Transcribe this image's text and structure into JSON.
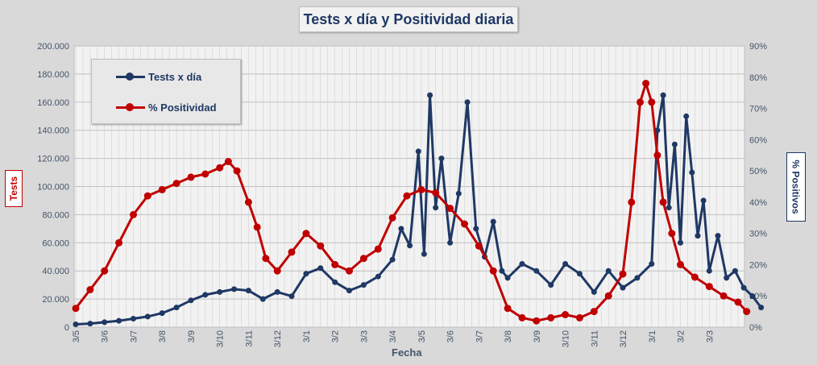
{
  "colors": {
    "tests": "#1f3864",
    "positividad": "#c00000",
    "axis_text": "#44546a"
  },
  "chart_data": {
    "type": "line",
    "title": "Tests x día y Positividad diaria",
    "xlabel": "Fecha",
    "ylabel_left": "Tests",
    "ylabel_right": "% Positivos",
    "legend": [
      "Tests x día",
      "% Positividad"
    ],
    "legend_position": "top-left",
    "grid": true,
    "y_left": {
      "min": 0,
      "max": 200000,
      "ticks": [
        "0",
        "20.000",
        "40.000",
        "60.000",
        "80.000",
        "100.000",
        "120.000",
        "140.000",
        "160.000",
        "180.000",
        "200.000"
      ]
    },
    "y_right": {
      "min": 0,
      "max": 90,
      "ticks": [
        "0%",
        "10%",
        "20%",
        "30%",
        "40%",
        "50%",
        "60%",
        "70%",
        "80%",
        "90%"
      ]
    },
    "x_tick_labels": [
      "3/5",
      "3/6",
      "3/7",
      "3/8",
      "3/9",
      "3/10",
      "3/11",
      "3/12",
      "3/1",
      "3/2",
      "3/3",
      "3/4",
      "3/5",
      "3/6",
      "3/7",
      "3/8",
      "3/9",
      "3/10",
      "3/11",
      "3/12",
      "3/1",
      "3/2",
      "3/3"
    ],
    "series": [
      {
        "name": "Tests x día",
        "axis": "left",
        "points": [
          [
            0,
            2000
          ],
          [
            0.5,
            2500
          ],
          [
            1,
            3500
          ],
          [
            1.5,
            4500
          ],
          [
            2,
            6000
          ],
          [
            2.5,
            7500
          ],
          [
            3,
            10000
          ],
          [
            3.5,
            14000
          ],
          [
            4,
            19000
          ],
          [
            4.5,
            23000
          ],
          [
            5,
            25000
          ],
          [
            5.5,
            27000
          ],
          [
            6,
            26000
          ],
          [
            6.5,
            20000
          ],
          [
            7,
            25000
          ],
          [
            7.5,
            22000
          ],
          [
            8,
            38000
          ],
          [
            8.5,
            42000
          ],
          [
            9,
            32000
          ],
          [
            9.5,
            26000
          ],
          [
            10,
            30000
          ],
          [
            10.5,
            36000
          ],
          [
            11,
            48000
          ],
          [
            11.3,
            70000
          ],
          [
            11.6,
            58000
          ],
          [
            11.9,
            125000
          ],
          [
            12.1,
            52000
          ],
          [
            12.3,
            165000
          ],
          [
            12.5,
            85000
          ],
          [
            12.7,
            120000
          ],
          [
            13,
            60000
          ],
          [
            13.3,
            95000
          ],
          [
            13.6,
            160000
          ],
          [
            13.9,
            70000
          ],
          [
            14.2,
            50000
          ],
          [
            14.5,
            75000
          ],
          [
            14.8,
            40000
          ],
          [
            15,
            35000
          ],
          [
            15.5,
            45000
          ],
          [
            16,
            40000
          ],
          [
            16.5,
            30000
          ],
          [
            17,
            45000
          ],
          [
            17.5,
            38000
          ],
          [
            18,
            25000
          ],
          [
            18.5,
            40000
          ],
          [
            19,
            28000
          ],
          [
            19.5,
            35000
          ],
          [
            20,
            45000
          ],
          [
            20.2,
            140000
          ],
          [
            20.4,
            165000
          ],
          [
            20.6,
            85000
          ],
          [
            20.8,
            130000
          ],
          [
            21,
            60000
          ],
          [
            21.2,
            150000
          ],
          [
            21.4,
            110000
          ],
          [
            21.6,
            65000
          ],
          [
            21.8,
            90000
          ],
          [
            22,
            40000
          ],
          [
            22.3,
            65000
          ],
          [
            22.6,
            35000
          ],
          [
            22.9,
            40000
          ],
          [
            23.2,
            28000
          ],
          [
            23.5,
            22000
          ],
          [
            23.8,
            14000
          ]
        ]
      },
      {
        "name": "% Positividad",
        "axis": "right",
        "points": [
          [
            0,
            6
          ],
          [
            0.5,
            12
          ],
          [
            1,
            18
          ],
          [
            1.5,
            27
          ],
          [
            2,
            36
          ],
          [
            2.5,
            42
          ],
          [
            3,
            44
          ],
          [
            3.5,
            46
          ],
          [
            4,
            48
          ],
          [
            4.5,
            49
          ],
          [
            5,
            51
          ],
          [
            5.3,
            53
          ],
          [
            5.6,
            50
          ],
          [
            6,
            40
          ],
          [
            6.3,
            32
          ],
          [
            6.6,
            22
          ],
          [
            7,
            18
          ],
          [
            7.5,
            24
          ],
          [
            8,
            30
          ],
          [
            8.5,
            26
          ],
          [
            9,
            20
          ],
          [
            9.5,
            18
          ],
          [
            10,
            22
          ],
          [
            10.5,
            25
          ],
          [
            11,
            35
          ],
          [
            11.5,
            42
          ],
          [
            12,
            44
          ],
          [
            12.5,
            43
          ],
          [
            13,
            38
          ],
          [
            13.5,
            33
          ],
          [
            14,
            26
          ],
          [
            14.5,
            18
          ],
          [
            15,
            6
          ],
          [
            15.5,
            3
          ],
          [
            16,
            2
          ],
          [
            16.5,
            3
          ],
          [
            17,
            4
          ],
          [
            17.5,
            3
          ],
          [
            18,
            5
          ],
          [
            18.5,
            10
          ],
          [
            19,
            17
          ],
          [
            19.3,
            40
          ],
          [
            19.6,
            72
          ],
          [
            19.8,
            78
          ],
          [
            20,
            72
          ],
          [
            20.2,
            55
          ],
          [
            20.4,
            40
          ],
          [
            20.7,
            30
          ],
          [
            21,
            20
          ],
          [
            21.5,
            16
          ],
          [
            22,
            13
          ],
          [
            22.5,
            10
          ],
          [
            23,
            8
          ],
          [
            23.3,
            5
          ]
        ]
      }
    ]
  }
}
